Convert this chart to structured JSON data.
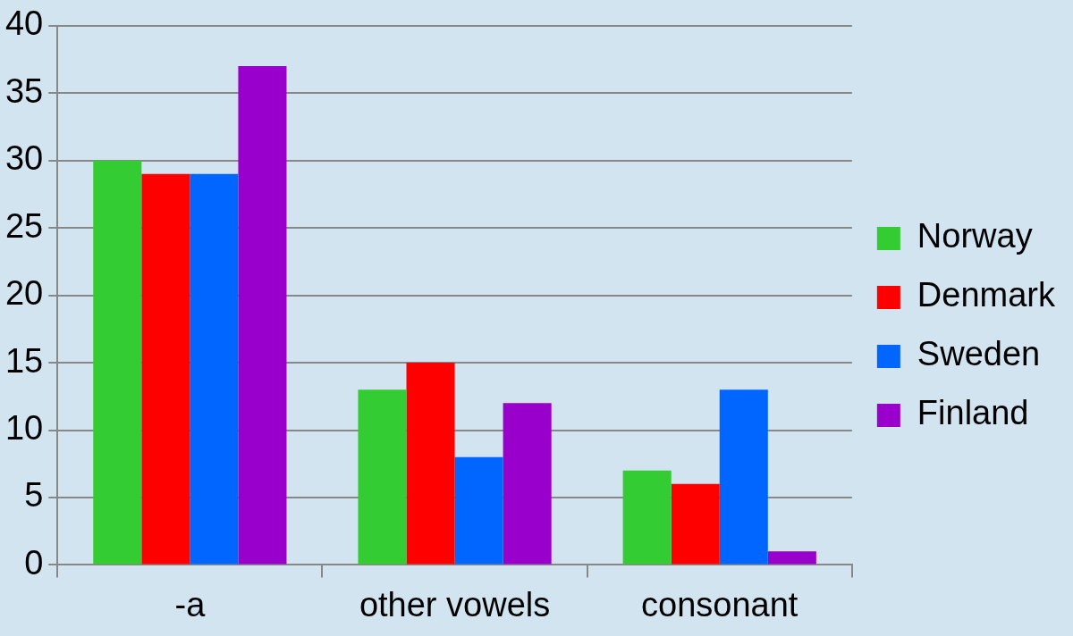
{
  "chart_data": {
    "type": "bar",
    "categories": [
      "-a",
      "other vowels",
      "consonant"
    ],
    "series": [
      {
        "name": "Norway",
        "color": "#33cc33",
        "values": [
          30,
          13,
          7
        ]
      },
      {
        "name": "Denmark",
        "color": "#ff0000",
        "values": [
          29,
          15,
          6
        ]
      },
      {
        "name": "Sweden",
        "color": "#0066ff",
        "values": [
          29,
          8,
          13
        ]
      },
      {
        "name": "Finland",
        "color": "#9900cc",
        "values": [
          37,
          12,
          1
        ]
      }
    ],
    "ylim": [
      0,
      40
    ],
    "yticks": [
      0,
      5,
      10,
      15,
      20,
      25,
      30,
      35,
      40
    ],
    "grid": "y",
    "legend": "right"
  }
}
